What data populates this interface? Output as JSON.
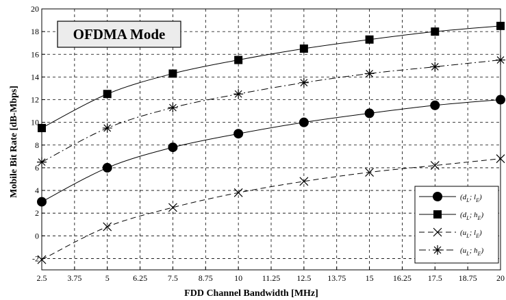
{
  "chart_data": {
    "type": "line",
    "annotation": "OFDMA Mode",
    "xlabel": "FDD Channel Bandwidth [MHz]",
    "ylabel": "Mobile Bit Rate [dB-Mbps]",
    "xlim": [
      2.5,
      20
    ],
    "ylim": [
      -3,
      20
    ],
    "xticks": [
      "2.5",
      "3.75",
      "5",
      "6.25",
      "7.5",
      "8.75",
      "10",
      "11.25",
      "12.5",
      "13.75",
      "15",
      "16.25",
      "17.5",
      "18.75",
      "20"
    ],
    "yticks": [
      "-2",
      "0",
      "2",
      "4",
      "6",
      "8",
      "10",
      "12",
      "14",
      "16",
      "18",
      "20"
    ],
    "grid": true,
    "legend_position": "bottom-right",
    "x": [
      2.5,
      5,
      7.5,
      10,
      12.5,
      15,
      17.5,
      20
    ],
    "series": [
      {
        "name": "(d_L; l_E)",
        "marker": "circle",
        "linestyle": "solid",
        "values": [
          3.0,
          6.0,
          7.8,
          9.0,
          10.0,
          10.8,
          11.5,
          12.0
        ]
      },
      {
        "name": "(d_L; h_E)",
        "marker": "square",
        "linestyle": "solid",
        "values": [
          9.5,
          12.5,
          14.3,
          15.5,
          16.5,
          17.3,
          18.0,
          18.5
        ]
      },
      {
        "name": "(u_L; l_E)",
        "marker": "x",
        "linestyle": "dashed",
        "values": [
          -2.1,
          0.8,
          2.5,
          3.8,
          4.8,
          5.6,
          6.2,
          6.8
        ]
      },
      {
        "name": "(u_L; h_E)",
        "marker": "star",
        "linestyle": "dashdot",
        "values": [
          6.5,
          9.5,
          11.3,
          12.5,
          13.5,
          14.3,
          14.9,
          15.5
        ]
      }
    ],
    "legend": [
      {
        "main": "(d",
        "sub1": "L",
        "mid": "; l",
        "sub2": "E",
        "end": ")"
      },
      {
        "main": "(d",
        "sub1": "L",
        "mid": "; h",
        "sub2": "E",
        "end": ")"
      },
      {
        "main": "(u",
        "sub1": "L",
        "mid": "; l",
        "sub2": "E",
        "end": ")"
      },
      {
        "main": "(u",
        "sub1": "L",
        "mid": "; h",
        "sub2": "E",
        "end": ")"
      }
    ]
  }
}
